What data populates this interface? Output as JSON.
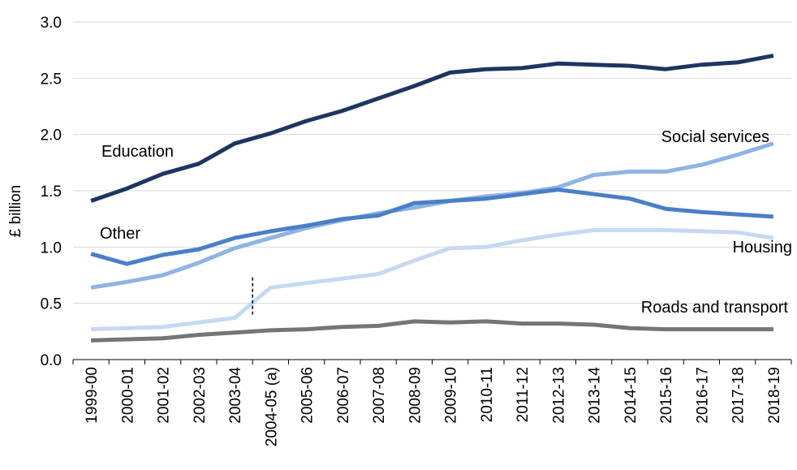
{
  "chart_data": {
    "type": "line",
    "ylabel": "£ billion",
    "ylim": [
      0,
      3.0
    ],
    "yticks": [
      "0.0",
      "0.5",
      "1.0",
      "1.5",
      "2.0",
      "2.5",
      "3.0"
    ],
    "grid": "horizontal",
    "categories": [
      "1999-00",
      "2000-01",
      "2001-02",
      "2002-03",
      "2003-04",
      "2004-05 (a)",
      "2005-06",
      "2006-07",
      "2007-08",
      "2008-09",
      "2009-10",
      "2010-11",
      "2011-12",
      "2012-13",
      "2013-14",
      "2014-15",
      "2015-16",
      "2016-17",
      "2017-18",
      "2018-19"
    ],
    "series": [
      {
        "name": "Education",
        "color": "#1c3660",
        "label_at": 1,
        "values": [
          1.41,
          1.52,
          1.65,
          1.74,
          1.92,
          2.01,
          2.12,
          2.21,
          2.32,
          2.43,
          2.55,
          2.58,
          2.59,
          2.63,
          2.62,
          2.61,
          2.58,
          2.62,
          2.64,
          2.7
        ]
      },
      {
        "name": "Social services",
        "color": "#8eb4e3",
        "label_at": 17,
        "values": [
          0.64,
          0.69,
          0.75,
          0.86,
          0.99,
          1.08,
          1.17,
          1.24,
          1.3,
          1.35,
          1.41,
          1.45,
          1.48,
          1.53,
          1.64,
          1.67,
          1.67,
          1.73,
          1.82,
          1.92
        ]
      },
      {
        "name": "Other",
        "color": "#4a7fc8",
        "label_at": 0,
        "values": [
          0.94,
          0.85,
          0.93,
          0.98,
          1.08,
          1.14,
          1.19,
          1.25,
          1.28,
          1.39,
          1.41,
          1.43,
          1.47,
          1.51,
          1.47,
          1.43,
          1.34,
          1.31,
          1.29,
          1.27
        ]
      },
      {
        "name": "Housing",
        "color": "#c6d9f1",
        "label_at": 19,
        "break_after": 4,
        "values": [
          0.27,
          0.28,
          0.29,
          0.33,
          0.37,
          0.64,
          0.68,
          0.72,
          0.76,
          0.88,
          0.99,
          1.0,
          1.06,
          1.11,
          1.15,
          1.15,
          1.15,
          1.14,
          1.13,
          1.08
        ]
      },
      {
        "name": "Roads and transport",
        "color": "#757575",
        "label_at": 18,
        "values": [
          0.17,
          0.18,
          0.19,
          0.22,
          0.24,
          0.26,
          0.27,
          0.29,
          0.3,
          0.34,
          0.33,
          0.34,
          0.32,
          0.32,
          0.31,
          0.28,
          0.27,
          0.27,
          0.27,
          0.27
        ]
      }
    ]
  }
}
